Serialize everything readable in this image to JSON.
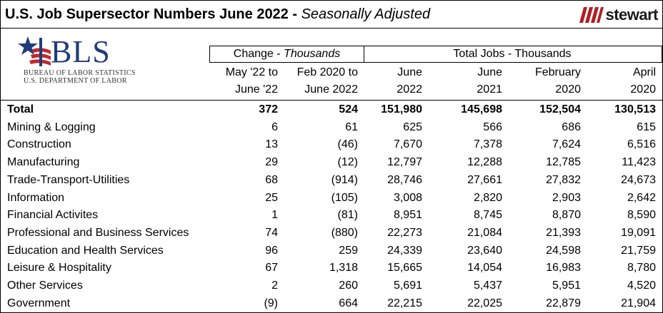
{
  "title": {
    "main": "U.S. Job Supersector Numbers June 2022 - ",
    "sub": "Seasonally Adjusted"
  },
  "logos": {
    "stewart": "stewart",
    "bls_letters": "BLS",
    "bls_line1": "BUREAU OF LABOR STATISTICS",
    "bls_line2": "U.S. DEPARTMENT OF LABOR"
  },
  "groups": {
    "change_prefix": "Change - ",
    "change_italic": "Thousands",
    "total": "Total Jobs - Thousands"
  },
  "columns": [
    {
      "line1": "May '22 to",
      "line2": "June '22"
    },
    {
      "line1": "Feb 2020 to",
      "line2": "June 2022"
    },
    {
      "line1": "June",
      "line2": "2022"
    },
    {
      "line1": "June",
      "line2": "2021"
    },
    {
      "line1": "February",
      "line2": "2020"
    },
    {
      "line1": "April",
      "line2": "2020"
    }
  ],
  "rows": [
    {
      "label": "Total",
      "values": [
        "372",
        "524",
        "151,980",
        "145,698",
        "152,504",
        "130,513"
      ]
    },
    {
      "label": "Mining & Logging",
      "values": [
        "6",
        "61",
        "625",
        "566",
        "686",
        "615"
      ]
    },
    {
      "label": "Construction",
      "values": [
        "13",
        "(46)",
        "7,670",
        "7,378",
        "7,624",
        "6,516"
      ]
    },
    {
      "label": "Manufacturing",
      "values": [
        "29",
        "(12)",
        "12,797",
        "12,288",
        "12,785",
        "11,423"
      ]
    },
    {
      "label": "Trade-Transport-Utilities",
      "values": [
        "68",
        "(914)",
        "28,746",
        "27,661",
        "27,832",
        "24,673"
      ]
    },
    {
      "label": "Information",
      "values": [
        "25",
        "(105)",
        "3,008",
        "2,820",
        "2,903",
        "2,642"
      ]
    },
    {
      "label": "Financial Activites",
      "values": [
        "1",
        "(81)",
        "8,951",
        "8,745",
        "8,870",
        "8,590"
      ]
    },
    {
      "label": "Professional and Business Services",
      "values": [
        "74",
        "(880)",
        "22,273",
        "21,084",
        "21,393",
        "19,091"
      ]
    },
    {
      "label": "Education and Health Services",
      "values": [
        "96",
        "259",
        "24,339",
        "23,640",
        "24,598",
        "21,759"
      ]
    },
    {
      "label": "Leisure & Hospitality",
      "values": [
        "67",
        "1,318",
        "15,665",
        "14,054",
        "16,983",
        "8,780"
      ]
    },
    {
      "label": "Other Services",
      "values": [
        "2",
        "260",
        "5,691",
        "5,437",
        "5,951",
        "4,520"
      ]
    },
    {
      "label": "Government",
      "values": [
        "(9)",
        "664",
        "22,215",
        "22,025",
        "22,879",
        "21,904"
      ]
    }
  ],
  "colors": {
    "stewart_red": "#b11f24",
    "bls_blue": "#1f3c7a",
    "bls_red": "#c1272d"
  }
}
